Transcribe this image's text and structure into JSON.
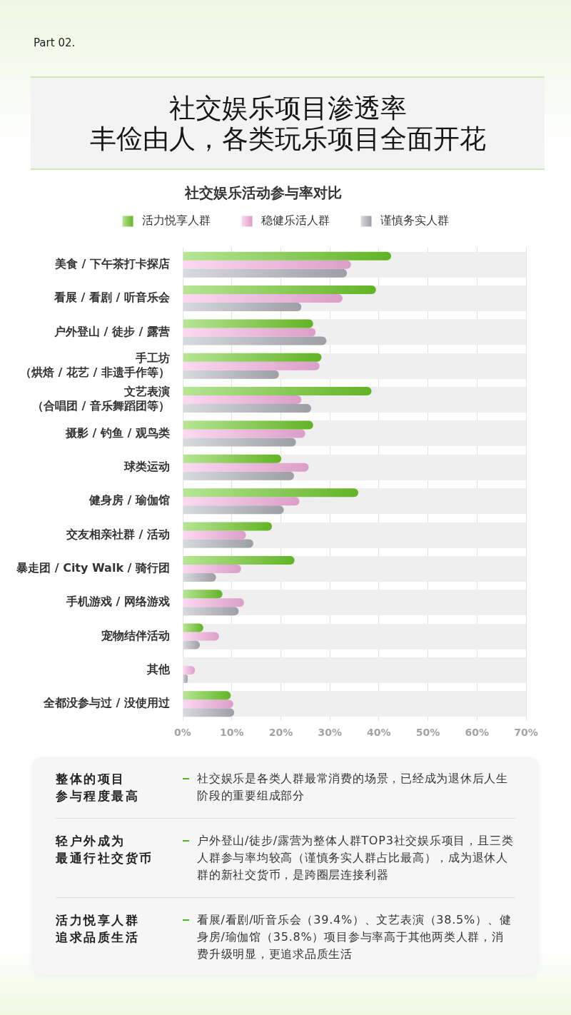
{
  "chart_data": {
    "type": "bar",
    "orientation": "horizontal",
    "title": "社交娱乐项目渗透率",
    "subtitle": "丰俭由人，各类玩乐项目全面开花",
    "categories": [
      "美食 / 下午茶打卡探店",
      "看展 / 看剧 / 听音乐会",
      "户外登山 / 徒步 / 露营",
      "手工坊（烘焙 / 花艺 / 非遗手作等）",
      "文艺表演（合唱团 / 音乐舞蹈团等）",
      "摄影 / 钓鱼 / 观鸟类",
      "球类运动",
      "健身房 / 瑜伽馆",
      "交友相亲社群 / 活动",
      "暴走团 / City Walk / 骑行团",
      "手机游戏 / 网络游戏",
      "宠物结伴活动",
      "其他",
      "全都没参与过 / 没使用过"
    ],
    "series": [
      {
        "name": "活力悦享人群",
        "color": "#6fcb2a",
        "values": [
          42.5,
          39.4,
          26.6,
          28.3,
          38.5,
          26.6,
          20.1,
          35.8,
          18.2,
          22.8,
          8.1,
          4.2,
          null,
          9.8
        ]
      },
      {
        "name": "稳健乐活人群",
        "color": "#f9b3e3",
        "values": [
          34.3,
          32.6,
          27.1,
          27.9,
          24.2,
          25.0,
          25.7,
          23.8,
          12.9,
          11.9,
          12.5,
          7.4,
          2.5,
          10.3
        ]
      },
      {
        "name": "谨慎务实人群",
        "color": "#b2b4bd",
        "values": [
          33.5,
          24.2,
          29.3,
          19.6,
          26.2,
          23.1,
          22.7,
          20.6,
          14.4,
          6.8,
          11.4,
          3.5,
          1.0,
          10.5
        ]
      }
    ],
    "xlim": [
      0,
      70
    ],
    "xticks": [
      {
        "value": 0,
        "label": "0%"
      },
      {
        "value": 10,
        "label": "10%"
      },
      {
        "value": 20,
        "label": "20%"
      },
      {
        "value": 30,
        "label": "30%"
      },
      {
        "value": 40,
        "label": "40%"
      },
      {
        "value": 50,
        "label": "50%"
      },
      {
        "value": 60,
        "label": "60%"
      },
      {
        "value": 70,
        "label": "70%"
      }
    ],
    "grid": true,
    "legend": "top",
    "annotations": [
      "Part 02.",
      "社交娱乐活动参与率对比",
      "整体的项目",
      "参与程度最高",
      "社交娱乐是各类人群最常消费的场景，已经成为退休后人生阶段的重要组成部分",
      "轻户外成为",
      "最通行社交货币",
      "户外登山/徒步/露营为整体人群TOP3社交娱乐项目，且三类人群参与率均较高（谨慎务实人群占比最高），成为退休人群的新社交货币，是跨圈层连接利器",
      "活力悦享人群",
      "追求品质生活",
      "看展/看剧/听音乐会（39.4%）、文艺表演（38.5%）、健身房/瑜伽馆（35.8%）项目参与率高于其他两类人群，消费升级明显，更追求品质生活"
    ]
  }
}
